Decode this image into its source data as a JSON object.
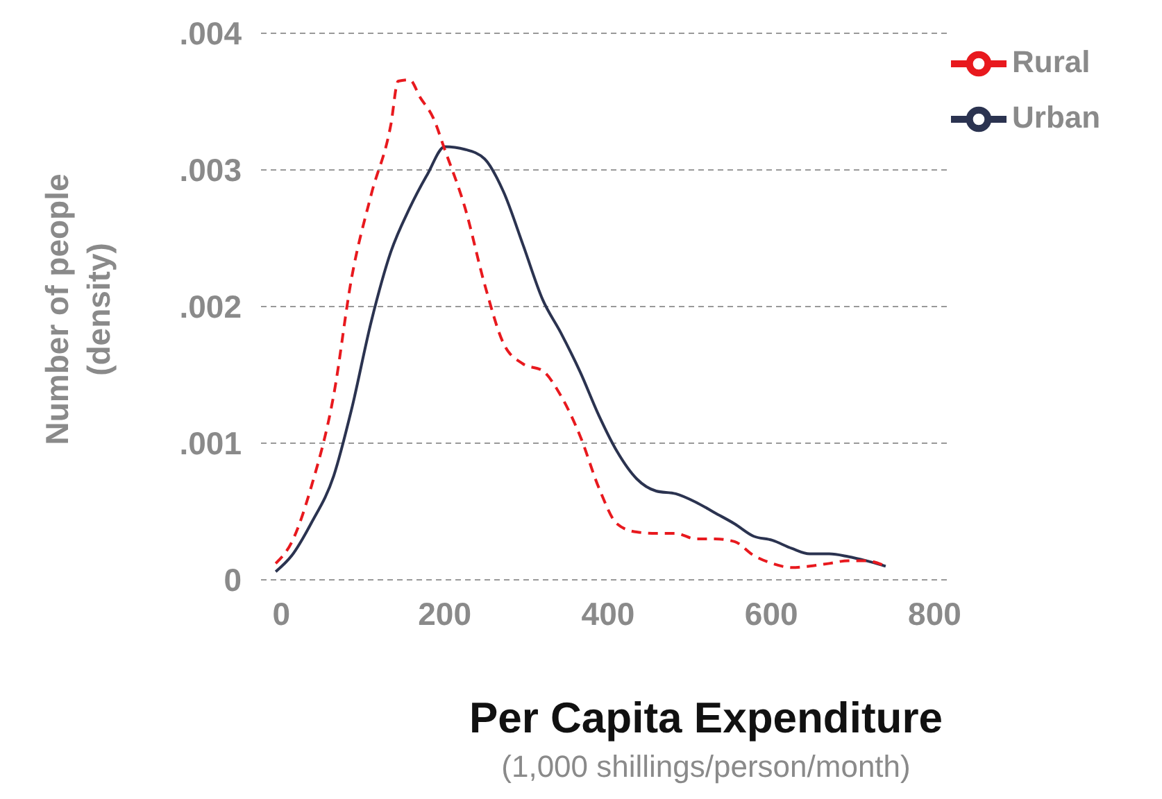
{
  "chart_data": {
    "type": "line",
    "xlabel": "Per Capita Expenditure",
    "ylabel": "Number of people\n(density)",
    "annotations": [
      "(1,000 shillings/person/month)"
    ],
    "xlim": [
      -25,
      820
    ],
    "xticks": [
      0,
      200,
      400,
      600,
      800
    ],
    "ylim": [
      0,
      0.004
    ],
    "yticks": [
      0,
      {
        "value": 0.001,
        "label": ".001"
      },
      {
        "value": 0.002,
        "label": ".002"
      },
      {
        "value": 0.003,
        "label": ".003"
      },
      {
        "value": 0.004,
        "label": ".004"
      }
    ],
    "grid": "y",
    "legend": "top right",
    "marker": "none",
    "series": [
      {
        "name": "Urban",
        "color": "#2b3350",
        "line_style": "solid",
        "x": [
          -7,
          13,
          37,
          64,
          86,
          110,
          134,
          157,
          179,
          200,
          225,
          249,
          272,
          296,
          320,
          342,
          366,
          389,
          411,
          435,
          459,
          483,
          507,
          531,
          555,
          578,
          601,
          625,
          647,
          671,
          694,
          716,
          740
        ],
        "values": [
          6e-05,
          0.00018,
          0.00042,
          0.00076,
          0.00125,
          0.00189,
          0.0024,
          0.00272,
          0.00297,
          0.00317,
          0.00315,
          0.00308,
          0.00284,
          0.00245,
          0.00205,
          0.00181,
          0.00152,
          0.0012,
          0.00094,
          0.00074,
          0.00065,
          0.00063,
          0.00057,
          0.00049,
          0.00041,
          0.00032,
          0.00029,
          0.00023,
          0.00019,
          0.00019,
          0.00017,
          0.00014,
          0.0001
        ]
      },
      {
        "name": "Rural",
        "color": "#e8191e",
        "line_style": "dashed",
        "x": [
          -7,
          13,
          37,
          64,
          86,
          110,
          134,
          143,
          157,
          170,
          186,
          200,
          225,
          249,
          272,
          296,
          320,
          342,
          366,
          389,
          411,
          435,
          459,
          483,
          507,
          531,
          555,
          578,
          601,
          625,
          647,
          671,
          694,
          716,
          740
        ],
        "values": [
          0.00012,
          0.00028,
          0.00069,
          0.00135,
          0.00221,
          0.00282,
          0.00333,
          0.00365,
          0.00366,
          0.00353,
          0.00338,
          0.00315,
          0.00272,
          0.00216,
          0.00173,
          0.00158,
          0.00153,
          0.00135,
          0.00105,
          0.00067,
          0.00041,
          0.00035,
          0.00034,
          0.00034,
          0.0003,
          0.0003,
          0.00028,
          0.00018,
          0.00012,
          9e-05,
          0.0001,
          0.00012,
          0.00014,
          0.00014,
          0.0001
        ]
      }
    ]
  }
}
